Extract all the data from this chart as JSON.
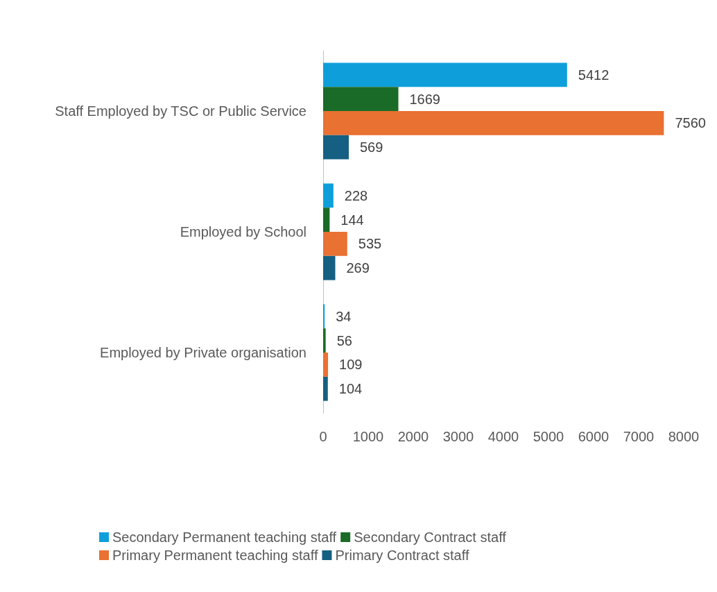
{
  "chart_data": {
    "type": "bar",
    "orientation": "horizontal",
    "categories": [
      "Staff Employed by TSC or Public Service",
      "Employed by School",
      "Employed by Private organisation"
    ],
    "series": [
      {
        "name": "Secondary Permanent teaching staff",
        "color": "#0e9fdb",
        "values": [
          5412,
          228,
          34
        ]
      },
      {
        "name": "Secondary Contract staff",
        "color": "#1a6b27",
        "values": [
          1669,
          144,
          56
        ]
      },
      {
        "name": "Primary Permanent teaching staff",
        "color": "#e97132",
        "values": [
          7560,
          535,
          109
        ]
      },
      {
        "name": "Primary Contract staff",
        "color": "#155f82",
        "values": [
          569,
          269,
          104
        ]
      }
    ],
    "xlim": [
      0,
      8000
    ],
    "xticks": [
      0,
      1000,
      2000,
      3000,
      4000,
      5000,
      6000,
      7000,
      8000
    ],
    "grid": false,
    "legend": "bottom",
    "data_labels": true
  }
}
